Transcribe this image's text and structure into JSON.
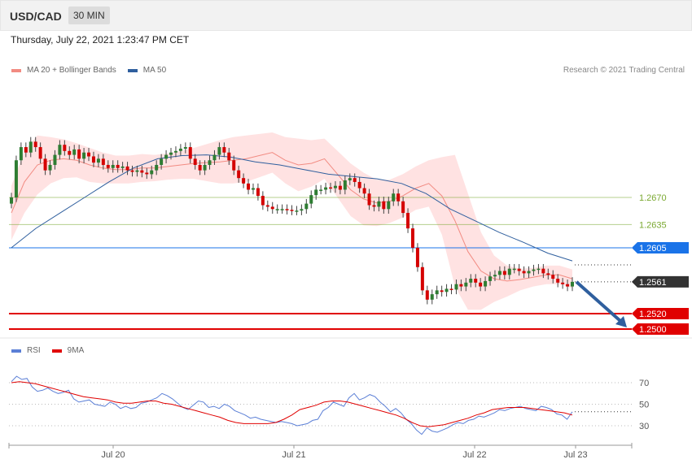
{
  "header": {
    "symbol": "USD/CAD",
    "timeframe": "30 MIN"
  },
  "datetime": "Thursday, July 22, 2021 1:23:47 PM CET",
  "legend": {
    "price": [
      {
        "label": "MA 20 + Bollinger Bands",
        "color": "#f28b82"
      },
      {
        "label": "MA 50",
        "color": "#2f5f9e"
      }
    ],
    "rsi": [
      {
        "label": "RSI",
        "color": "#5b7fd6"
      },
      {
        "label": "9MA",
        "color": "#e00000"
      }
    ]
  },
  "credit": "Research © 2021 Trading Central",
  "chart_data": {
    "type": "candlestick",
    "symbol": "USD/CAD",
    "timeframe": "30 MIN",
    "x_ticks": [
      "Jul 20",
      "Jul 21",
      "Jul 22",
      "Jul 23"
    ],
    "price_levels": [
      {
        "label": "1.2670",
        "value": 1.267,
        "color": "#7aa830",
        "style": "thin"
      },
      {
        "label": "1.2635",
        "value": 1.2635,
        "color": "#7aa830",
        "style": "thin"
      },
      {
        "label": "1.2605",
        "value": 1.2605,
        "color": "#1a73e8",
        "style": "line"
      },
      {
        "label": "1.2561",
        "value": 1.2561,
        "color": "#333333",
        "style": "dotted"
      },
      {
        "label": "1.2520",
        "value": 1.252,
        "color": "#e00000",
        "style": "thick"
      },
      {
        "label": "1.2500",
        "value": 1.25,
        "color": "#e00000",
        "style": "thick"
      }
    ],
    "price_closes": [
      1.267,
      1.2718,
      1.2735,
      1.2728,
      1.2742,
      1.2735,
      1.272,
      1.2705,
      1.2712,
      1.2725,
      1.2738,
      1.273,
      1.2725,
      1.2732,
      1.272,
      1.2728,
      1.2723,
      1.2715,
      1.272,
      1.2712,
      1.2708,
      1.2712,
      1.2708,
      1.271,
      1.2705,
      1.2703,
      1.2705,
      1.2702,
      1.27,
      1.2705,
      1.2712,
      1.272,
      1.2725,
      1.2728,
      1.273,
      1.2733,
      1.2735,
      1.272,
      1.2712,
      1.2705,
      1.2712,
      1.2718,
      1.2725,
      1.2735,
      1.2728,
      1.2718,
      1.2705,
      1.2695,
      1.2688,
      1.268,
      1.2682,
      1.2672,
      1.266,
      1.2658,
      1.2655,
      1.2655,
      1.2655,
      1.2654,
      1.2653,
      1.2653,
      1.2655,
      1.2662,
      1.2673,
      1.268,
      1.268,
      1.2683,
      1.2682,
      1.2685,
      1.268,
      1.2692,
      1.2695,
      1.269,
      1.2682,
      1.2675,
      1.266,
      1.2658,
      1.2665,
      1.2655,
      1.2665,
      1.2675,
      1.2665,
      1.265,
      1.263,
      1.2605,
      1.258,
      1.255,
      1.2538,
      1.2545,
      1.255,
      1.2548,
      1.2552,
      1.2551,
      1.2558,
      1.2555,
      1.256,
      1.2565,
      1.256,
      1.2555,
      1.2562,
      1.2568,
      1.257,
      1.2575,
      1.257,
      1.2578,
      1.2578,
      1.2575,
      1.2572,
      1.2575,
      1.2577,
      1.2578,
      1.2572,
      1.257,
      1.2565,
      1.256,
      1.2558,
      1.2555,
      1.2561
    ],
    "ma20": [
      1.265,
      1.269,
      1.2712,
      1.2718,
      1.272,
      1.2718,
      1.2712,
      1.2708,
      1.2706,
      1.2706,
      1.2708,
      1.2708,
      1.271,
      1.2712,
      1.2714,
      1.2715,
      1.2716,
      1.2718,
      1.272,
      1.2724,
      1.2728,
      1.2718,
      1.2712,
      1.2714,
      1.272,
      1.27,
      1.268,
      1.2668,
      1.2663,
      1.2665,
      1.2672,
      1.2682,
      1.2688,
      1.2672,
      1.264,
      1.26,
      1.2575,
      1.2565,
      1.2562,
      1.2564,
      1.2567,
      1.257,
      1.257,
      1.2565
    ],
    "ma50": [
      1.2605,
      1.263,
      1.265,
      1.267,
      1.269,
      1.2708,
      1.272,
      1.2724,
      1.2725,
      1.2722,
      1.2716,
      1.2712,
      1.2706,
      1.27,
      1.2697,
      1.2694,
      1.2688,
      1.2675,
      1.2655,
      1.264,
      1.2625,
      1.2612,
      1.2598,
      1.2588
    ],
    "rsi": [
      71,
      76,
      73,
      74,
      66,
      62,
      63,
      65,
      62,
      60,
      61,
      63,
      55,
      52,
      53,
      54,
      50,
      49,
      48,
      52,
      50,
      46,
      48,
      46,
      47,
      51,
      52,
      54,
      56,
      60,
      58,
      55,
      51,
      47,
      45,
      49,
      53,
      52,
      47,
      48,
      46,
      50,
      48,
      44,
      42,
      40,
      37,
      38,
      36,
      35,
      34,
      33,
      34,
      33,
      32,
      30,
      31,
      32,
      35,
      36,
      44,
      47,
      52,
      50,
      48,
      56,
      60,
      54,
      56,
      59,
      57,
      52,
      48,
      43,
      46,
      42,
      36,
      32,
      26,
      22,
      28,
      25,
      24,
      26,
      28,
      31,
      33,
      32,
      35,
      36,
      39,
      38,
      40,
      42,
      45,
      44,
      46,
      47,
      48,
      46,
      45,
      44,
      48,
      47,
      45,
      41,
      40,
      36,
      43
    ],
    "rsi_ma": [
      70,
      71,
      70,
      69,
      67,
      65,
      63,
      61,
      59,
      57,
      56,
      55,
      54,
      52,
      51,
      51,
      52,
      53,
      53,
      51,
      50,
      48,
      46,
      44,
      42,
      40,
      38,
      35,
      33,
      32,
      32,
      32,
      32,
      33,
      36,
      40,
      45,
      47,
      49,
      52,
      53,
      53,
      52,
      50,
      48,
      46,
      44,
      42,
      40,
      37,
      33,
      30,
      29,
      30,
      31,
      33,
      35,
      37,
      40,
      42,
      45,
      46,
      47,
      47,
      47,
      46,
      45,
      44,
      43,
      42,
      40
    ],
    "rsi_levels": [
      70,
      50,
      30
    ],
    "rsi_last_label": ""
  }
}
